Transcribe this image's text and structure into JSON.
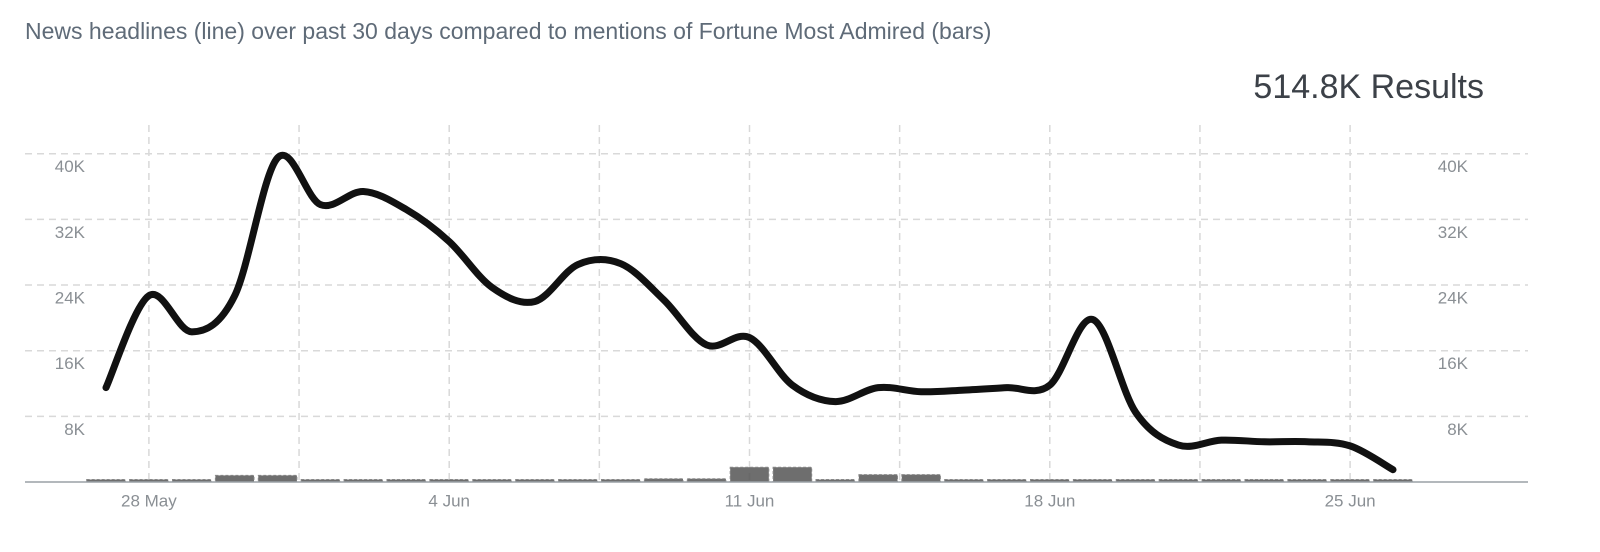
{
  "chart_data": {
    "type": "line-bar",
    "title": "News headlines (line) over past 30 days compared to mentions of Fortune Most Admired (bars)",
    "annotation": "514.8K Results",
    "categories": [
      null,
      "28 May",
      null,
      null,
      null,
      null,
      null,
      null,
      "4 Jun",
      null,
      null,
      null,
      null,
      null,
      null,
      "11 Jun",
      null,
      null,
      null,
      null,
      null,
      null,
      "18 Jun",
      null,
      null,
      null,
      null,
      null,
      null,
      "25 Jun",
      null
    ],
    "series": [
      {
        "type": "line",
        "color": "#111111",
        "values": [
          11500,
          22700,
          18300,
          22700,
          39500,
          33800,
          35400,
          33200,
          29300,
          23700,
          22000,
          26500,
          26600,
          22200,
          16700,
          17600,
          11800,
          9800,
          11500,
          11000,
          11200,
          11500,
          11800,
          19800,
          8500,
          4500,
          5100,
          4900,
          4900,
          4400,
          1500
        ]
      },
      {
        "type": "bar",
        "axis": "y2",
        "color": "#555555",
        "values": [
          300,
          300,
          300,
          800,
          800,
          300,
          300,
          300,
          300,
          300,
          300,
          300,
          300,
          400,
          400,
          1800,
          1800,
          300,
          900,
          900,
          300,
          300,
          300,
          300,
          300,
          300,
          300,
          300,
          300,
          300,
          300
        ]
      }
    ],
    "ylim": [
      0,
      43500
    ],
    "yticks": [
      {
        "value": 8000,
        "label": "8K"
      },
      {
        "value": 16000,
        "label": "16K"
      },
      {
        "value": 24000,
        "label": "24K"
      },
      {
        "value": 32000,
        "label": "32K"
      },
      {
        "value": 40000,
        "label": "40K"
      }
    ],
    "y2lim": [
      0,
      43500
    ],
    "y2ticks": [
      {
        "value": 8000,
        "label": "8K"
      },
      {
        "value": 16000,
        "label": "16K"
      },
      {
        "value": 24000,
        "label": "24K"
      },
      {
        "value": 32000,
        "label": "32K"
      },
      {
        "value": 40000,
        "label": "40K"
      }
    ],
    "grid": true
  }
}
